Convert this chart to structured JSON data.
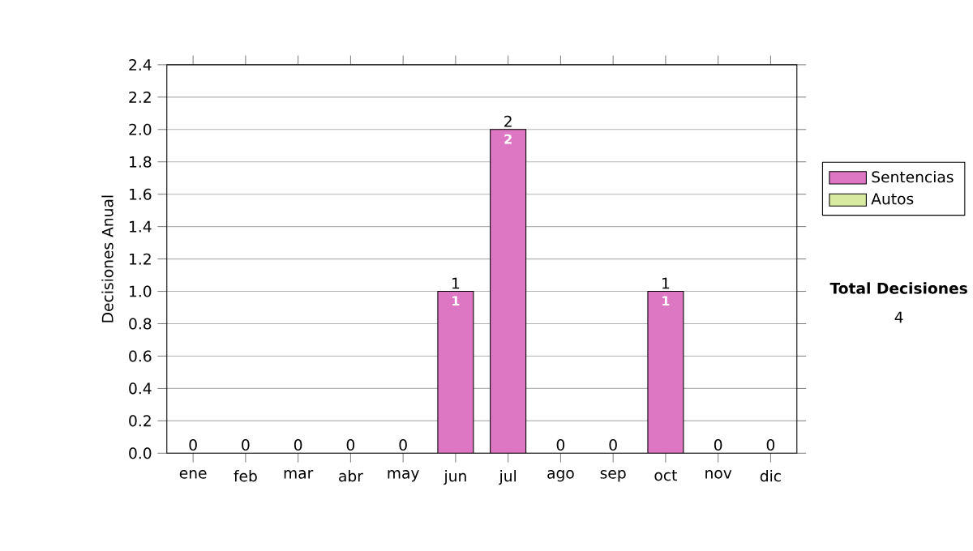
{
  "chart_data": {
    "type": "bar",
    "stacked": true,
    "categories": [
      "ene",
      "feb",
      "mar",
      "abr",
      "may",
      "jun",
      "jul",
      "ago",
      "sep",
      "oct",
      "nov",
      "dic"
    ],
    "ylabel": "Decisiones Anual",
    "series": [
      {
        "name": "Sentencias",
        "color": "#dd77c4",
        "values": [
          0,
          0,
          0,
          0,
          0,
          1,
          2,
          0,
          0,
          1,
          0,
          0
        ],
        "value_labels": [
          null,
          null,
          null,
          null,
          null,
          "1",
          "2",
          null,
          null,
          "1",
          null,
          null
        ]
      },
      {
        "name": "Autos",
        "color": "#d8eaa0",
        "values": [
          0,
          0,
          0,
          0,
          0,
          0,
          0,
          0,
          0,
          0,
          0,
          0
        ]
      }
    ],
    "totals": [
      "0",
      "0",
      "0",
      "0",
      "0",
      "1",
      "2",
      "0",
      "0",
      "1",
      "0",
      "0"
    ],
    "ylim": [
      0,
      2.4
    ],
    "yticks": [
      {
        "value": 0,
        "label": "0.0"
      },
      {
        "value": 0.2,
        "label": "0.2"
      },
      {
        "value": 0.4,
        "label": "0.4"
      },
      {
        "value": 0.6,
        "label": "0.6"
      },
      {
        "value": 0.8,
        "label": "0.8"
      },
      {
        "value": 1.0,
        "label": "1.0"
      },
      {
        "value": 1.2,
        "label": "1.2"
      },
      {
        "value": 1.4,
        "label": "1.4"
      },
      {
        "value": 1.6,
        "label": "1.6"
      },
      {
        "value": 1.8,
        "label": "1.8"
      },
      {
        "value": 2.0,
        "label": "2.0"
      },
      {
        "value": 2.2,
        "label": "2.2"
      },
      {
        "value": 2.4,
        "label": "2.4"
      }
    ],
    "grid": "y",
    "legend": "right",
    "annotations": [
      "Total Decisiones",
      "4"
    ]
  }
}
